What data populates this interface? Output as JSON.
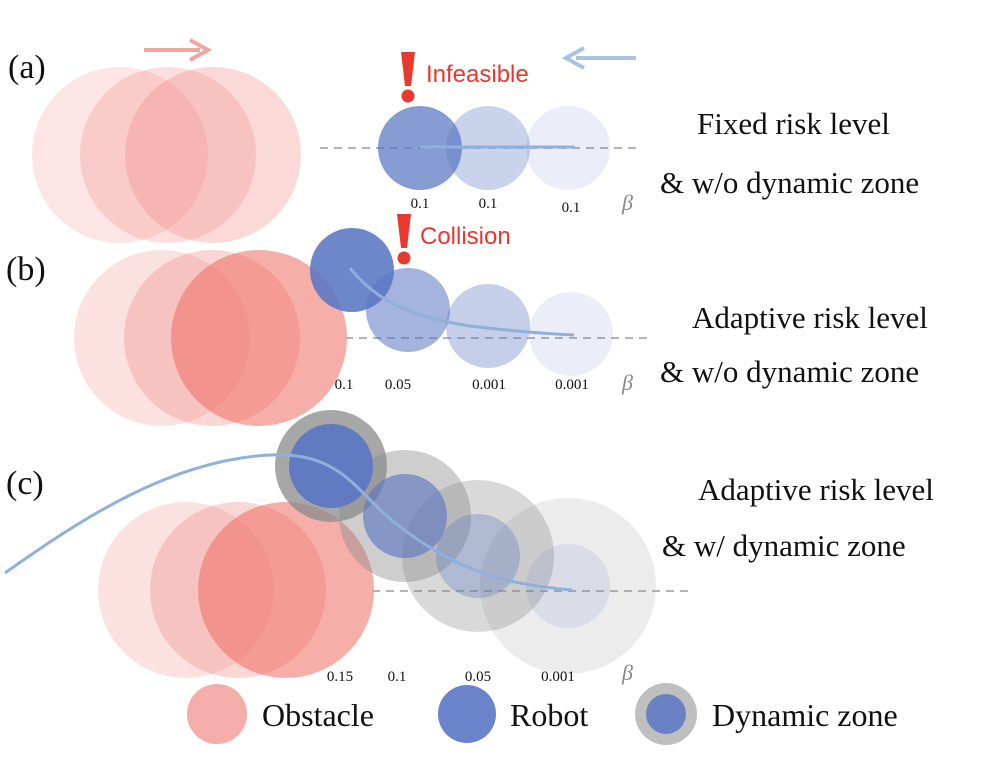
{
  "panels": [
    {
      "label": "(a)",
      "title_line1": "Fixed risk level",
      "title_line2": "& w/o dynamic zone",
      "warning_text": "Infeasible",
      "beta_values": [
        "0.1",
        "0.1",
        "0.1"
      ],
      "beta_symbol": "β"
    },
    {
      "label": "(b)",
      "title_line1": "Adaptive risk level",
      "title_line2": "& w/o dynamic zone",
      "warning_text": "Collision",
      "beta_values": [
        "0.1",
        "0.05",
        "0.001",
        "0.001"
      ],
      "beta_symbol": "β"
    },
    {
      "label": "(c)",
      "title_line1": "Adaptive risk level",
      "title_line2": "& w/ dynamic zone",
      "beta_values": [
        "0.15",
        "0.1",
        "0.05",
        "0.001"
      ],
      "beta_symbol": "β"
    }
  ],
  "legend": {
    "obstacle": "Obstacle",
    "robot": "Robot",
    "dynamic_zone": "Dynamic zone"
  },
  "colors": {
    "obstacle": "#f08a84",
    "obstacle_dark": "#ee6b63",
    "robot": "#5a76c4",
    "trajectory": "#8fb0dc",
    "zone": "#8a8a8a",
    "warning": "#e8392f",
    "arrow_obstacle": "#f2a4a0",
    "arrow_robot": "#a9c4e0"
  }
}
